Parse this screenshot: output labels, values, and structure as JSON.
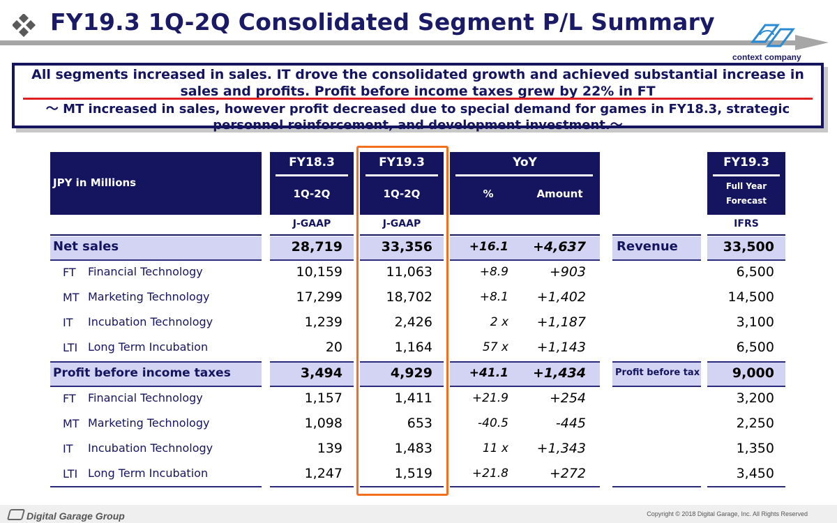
{
  "header": {
    "title": "FY19.3 1Q-2Q Consolidated Segment P/L Summary",
    "logo_text": "context company",
    "diamond_icon": "diamond-bullet-icon"
  },
  "message": {
    "line1": "All segments increased in sales. IT drove the consolidated growth and achieved substantial increase in sales and profits. Profit before income taxes grew by 22% in FT",
    "line2": "～ MT increased in sales, however profit decreased due to special demand for games in FY18.3, strategic personnel reinforcement, and development investment.～"
  },
  "table": {
    "unit_label": "JPY in Millions",
    "col_fy18": "FY18.3",
    "col_fy18_sub": "1Q-2Q",
    "col_fy19": "FY19.3",
    "col_fy19_sub": "1Q-2Q",
    "col_yoy": "YoY",
    "col_yoy_pct": "%",
    "col_yoy_amt": "Amount",
    "col_forecast": "FY19.3",
    "col_forecast_sub1": "Full Year",
    "col_forecast_sub2": "Forecast",
    "std_fy18": "J-GAAP",
    "std_fy19": "J-GAAP",
    "std_forecast": "IFRS",
    "rows": [
      {
        "abbr": "",
        "label": "Net sales",
        "fy18": "28,719",
        "fy19": "33,356",
        "pct": "+16.1",
        "amt": "+4,637",
        "ifrs_label": "Revenue",
        "forecast": "33,500"
      },
      {
        "abbr": "FT",
        "label": "Financial Technology",
        "fy18": "10,159",
        "fy19": "11,063",
        "pct": "+8.9",
        "amt": "+903",
        "ifrs_label": "",
        "forecast": "6,500"
      },
      {
        "abbr": "MT",
        "label": "Marketing Technology",
        "fy18": "17,299",
        "fy19": "18,702",
        "pct": "+8.1",
        "amt": "+1,402",
        "ifrs_label": "",
        "forecast": "14,500"
      },
      {
        "abbr": "IT",
        "label": "Incubation Technology",
        "fy18": "1,239",
        "fy19": "2,426",
        "pct": "2 x",
        "amt": "+1,187",
        "ifrs_label": "",
        "forecast": "3,100"
      },
      {
        "abbr": "LTI",
        "label": "Long Term Incubation",
        "fy18": "20",
        "fy19": "1,164",
        "pct": "57 x",
        "amt": "+1,143",
        "ifrs_label": "",
        "forecast": "6,500"
      },
      {
        "abbr": "",
        "label": "Profit before income taxes",
        "fy18": "3,494",
        "fy19": "4,929",
        "pct": "+41.1",
        "amt": "+1,434",
        "ifrs_label": "Profit before tax",
        "forecast": "9,000"
      },
      {
        "abbr": "FT",
        "label": "Financial Technology",
        "fy18": "1,157",
        "fy19": "1,411",
        "pct": "+21.9",
        "amt": "+254",
        "ifrs_label": "",
        "forecast": "3,200"
      },
      {
        "abbr": "MT",
        "label": "Marketing Technology",
        "fy18": "1,098",
        "fy19": "653",
        "pct": "-40.5",
        "amt": "-445",
        "ifrs_label": "",
        "forecast": "2,250"
      },
      {
        "abbr": "IT",
        "label": "Incubation Technology",
        "fy18": "139",
        "fy19": "1,483",
        "pct": "11 x",
        "amt": "+1,343",
        "ifrs_label": "",
        "forecast": "1,350"
      },
      {
        "abbr": "LTI",
        "label": "Long Term Incubation",
        "fy18": "1,247",
        "fy19": "1,519",
        "pct": "+21.8",
        "amt": "+272",
        "ifrs_label": "",
        "forecast": "3,450"
      }
    ]
  },
  "footer": {
    "brand": "Digital Garage Group",
    "copyright": "Copyright © 2018 Digital Garage, Inc. All Rights Reserved"
  },
  "colors": {
    "navy": "#14145f",
    "highlight_row": "#d3d3f3",
    "highlight_box": "#f07020",
    "red_rule": "#e02020"
  }
}
